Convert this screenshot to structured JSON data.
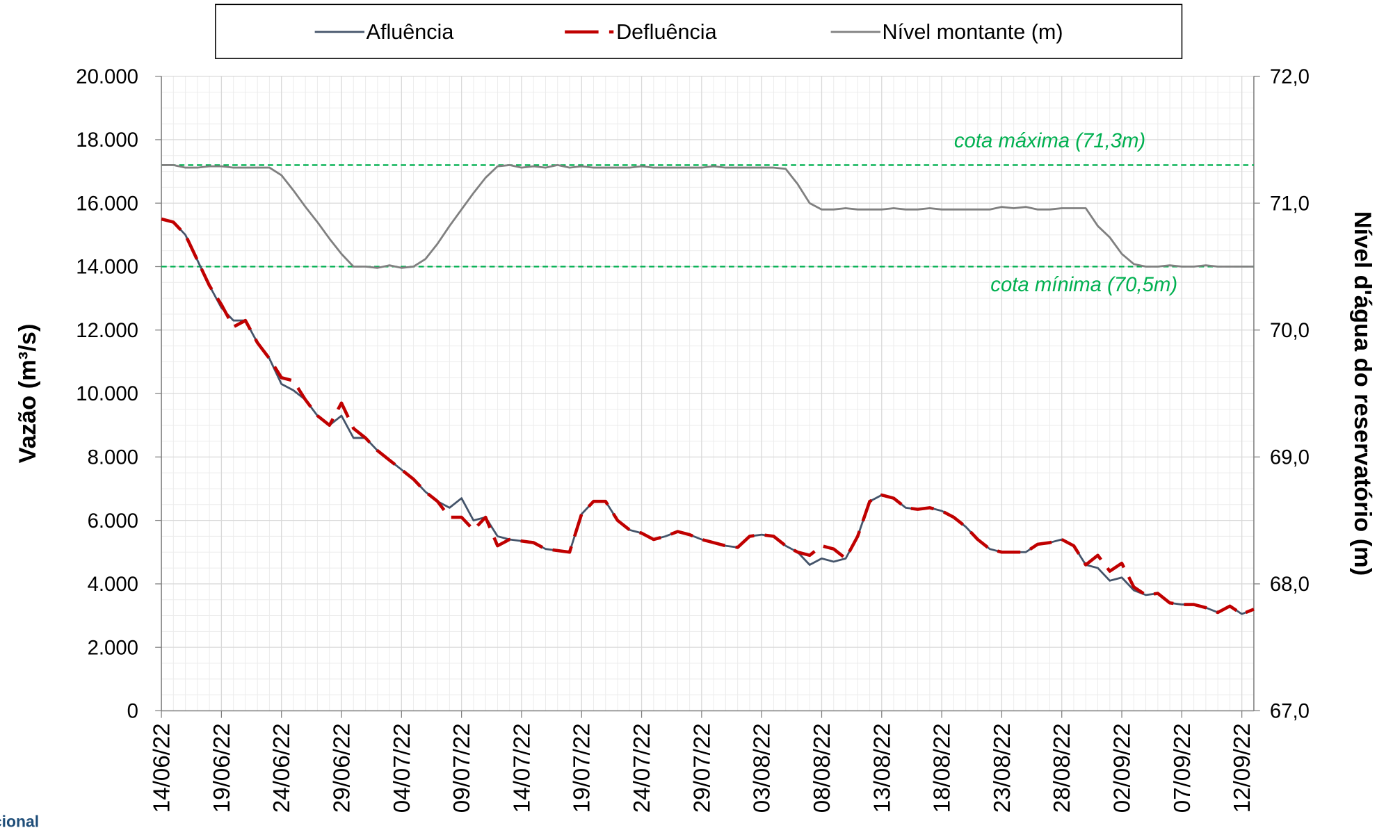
{
  "chart_data": {
    "type": "line",
    "ylabel": "Vazão (m³/s)",
    "y2label": "Nível d'água do reservatório (m)",
    "logo_text": "cional",
    "x": [
      "14/06/22",
      "15/06/22",
      "16/06/22",
      "17/06/22",
      "18/06/22",
      "19/06/22",
      "20/06/22",
      "21/06/22",
      "22/06/22",
      "23/06/22",
      "24/06/22",
      "25/06/22",
      "26/06/22",
      "27/06/22",
      "28/06/22",
      "29/06/22",
      "30/06/22",
      "01/07/22",
      "02/07/22",
      "03/07/22",
      "04/07/22",
      "05/07/22",
      "06/07/22",
      "07/07/22",
      "08/07/22",
      "09/07/22",
      "10/07/22",
      "11/07/22",
      "12/07/22",
      "13/07/22",
      "14/07/22",
      "15/07/22",
      "16/07/22",
      "17/07/22",
      "18/07/22",
      "19/07/22",
      "20/07/22",
      "21/07/22",
      "22/07/22",
      "23/07/22",
      "24/07/22",
      "25/07/22",
      "26/07/22",
      "27/07/22",
      "28/07/22",
      "29/07/22",
      "30/07/22",
      "31/07/22",
      "01/08/22",
      "02/08/22",
      "03/08/22",
      "04/08/22",
      "05/08/22",
      "06/08/22",
      "07/08/22",
      "08/08/22",
      "09/08/22",
      "10/08/22",
      "11/08/22",
      "12/08/22",
      "13/08/22",
      "14/08/22",
      "15/08/22",
      "16/08/22",
      "17/08/22",
      "18/08/22",
      "19/08/22",
      "20/08/22",
      "21/08/22",
      "22/08/22",
      "23/08/22",
      "24/08/22",
      "25/08/22",
      "26/08/22",
      "27/08/22",
      "28/08/22",
      "29/08/22",
      "30/08/22",
      "31/08/22",
      "01/09/22",
      "02/09/22",
      "03/09/22",
      "04/09/22",
      "05/09/22",
      "06/09/22",
      "07/09/22",
      "08/09/22",
      "09/09/22",
      "10/09/22",
      "11/09/22",
      "12/09/22",
      "13/09/22"
    ],
    "xticks": [
      "14/06/22",
      "19/06/22",
      "24/06/22",
      "29/06/22",
      "04/07/22",
      "09/07/22",
      "14/07/22",
      "19/07/22",
      "24/07/22",
      "29/07/22",
      "03/08/22",
      "08/08/22",
      "13/08/22",
      "18/08/22",
      "23/08/22",
      "28/08/22",
      "02/09/22",
      "07/09/22",
      "12/09/22"
    ],
    "series": [
      {
        "name": "Afluência",
        "color": "#44546a",
        "dash": false,
        "axis": "y",
        "values": [
          15500,
          15400,
          15000,
          14200,
          13400,
          12700,
          12300,
          12300,
          11600,
          11100,
          10300,
          10100,
          9800,
          9300,
          9000,
          9300,
          8600,
          8600,
          8200,
          7900,
          7600,
          7300,
          6900,
          6600,
          6400,
          6700,
          6000,
          6100,
          5500,
          5400,
          5350,
          5300,
          5100,
          5050,
          5000,
          6200,
          6600,
          6600,
          6000,
          5700,
          5600,
          5400,
          5500,
          5650,
          5550,
          5400,
          5300,
          5200,
          5150,
          5500,
          5550,
          5500,
          5200,
          5000,
          4600,
          4800,
          4700,
          4800,
          5500,
          6600,
          6800,
          6700,
          6400,
          6350,
          6400,
          6300,
          6100,
          5800,
          5400,
          5100,
          5000,
          5000,
          5000,
          5250,
          5300,
          5400,
          5200,
          4600,
          4500,
          4100,
          4200,
          3800,
          3650,
          3700,
          3400,
          3350,
          3350,
          3250,
          3100,
          3300,
          3050,
          3200
        ]
      },
      {
        "name": "Defluência",
        "color": "#c00000",
        "dash": true,
        "axis": "y",
        "values": [
          15500,
          15400,
          15000,
          14200,
          13400,
          12800,
          12100,
          12300,
          11600,
          11100,
          10500,
          10400,
          9800,
          9300,
          9000,
          9700,
          8900,
          8600,
          8200,
          7900,
          7600,
          7300,
          6900,
          6600,
          6100,
          6100,
          5700,
          6100,
          5200,
          5400,
          5350,
          5300,
          5100,
          5050,
          5000,
          6200,
          6600,
          6600,
          6000,
          5700,
          5600,
          5400,
          5500,
          5650,
          5550,
          5400,
          5300,
          5200,
          5150,
          5500,
          5550,
          5500,
          5200,
          5000,
          4900,
          5200,
          5100,
          4800,
          5500,
          6600,
          6800,
          6700,
          6400,
          6350,
          6400,
          6300,
          6100,
          5800,
          5400,
          5100,
          5000,
          5000,
          5000,
          5250,
          5300,
          5400,
          5200,
          4600,
          4900,
          4400,
          4650,
          3900,
          3650,
          3700,
          3400,
          3350,
          3350,
          3250,
          3100,
          3300,
          3050,
          3200
        ]
      },
      {
        "name": "Nível montante (m)",
        "color": "#808080",
        "dash": false,
        "axis": "y2",
        "values": [
          71.3,
          71.3,
          71.28,
          71.28,
          71.29,
          71.29,
          71.28,
          71.28,
          71.28,
          71.28,
          71.22,
          71.1,
          70.97,
          70.85,
          70.72,
          70.6,
          70.5,
          70.5,
          70.49,
          70.51,
          70.49,
          70.5,
          70.56,
          70.68,
          70.82,
          70.95,
          71.08,
          71.2,
          71.29,
          71.3,
          71.28,
          71.29,
          71.28,
          71.3,
          71.28,
          71.29,
          71.28,
          71.28,
          71.28,
          71.28,
          71.29,
          71.28,
          71.28,
          71.28,
          71.28,
          71.28,
          71.29,
          71.28,
          71.28,
          71.28,
          71.28,
          71.28,
          71.27,
          71.15,
          71.0,
          70.95,
          70.95,
          70.96,
          70.95,
          70.95,
          70.95,
          70.96,
          70.95,
          70.95,
          70.96,
          70.95,
          70.95,
          70.95,
          70.95,
          70.95,
          70.97,
          70.96,
          70.97,
          70.95,
          70.95,
          70.96,
          70.96,
          70.96,
          70.82,
          70.73,
          70.6,
          70.52,
          70.5,
          70.5,
          70.51,
          70.5,
          70.5,
          70.51,
          70.5,
          70.5,
          70.5,
          70.5
        ]
      }
    ],
    "ylim": [
      0,
      20000
    ],
    "yticks": [
      0,
      {
        "value": 2000,
        "label": "2.000"
      },
      {
        "value": 4000,
        "label": "4.000"
      },
      {
        "value": 6000,
        "label": "6.000"
      },
      {
        "value": 8000,
        "label": "8.000"
      },
      {
        "value": 10000,
        "label": "10.000"
      },
      {
        "value": 12000,
        "label": "12.000"
      },
      {
        "value": 14000,
        "label": "14.000"
      },
      {
        "value": 16000,
        "label": "16.000"
      },
      {
        "value": 18000,
        "label": "18.000"
      },
      {
        "value": 20000,
        "label": "20.000"
      }
    ],
    "y2lim": [
      67,
      72
    ],
    "y2ticks": [
      {
        "value": 67,
        "label": "67,0"
      },
      {
        "value": 68,
        "label": "68,0"
      },
      {
        "value": 69,
        "label": "69,0"
      },
      {
        "value": 70,
        "label": "70,0"
      },
      {
        "value": 71,
        "label": "71,0"
      },
      {
        "value": 72,
        "label": "72,0"
      }
    ],
    "reference_lines": [
      {
        "value": 71.3,
        "label": "cota máxima (71,3m)",
        "axis": "y2",
        "color": "#00b050"
      },
      {
        "value": 70.5,
        "label": "cota mínima (70,5m)",
        "axis": "y2",
        "color": "#00b050"
      }
    ],
    "grid": true,
    "legend": "top"
  }
}
